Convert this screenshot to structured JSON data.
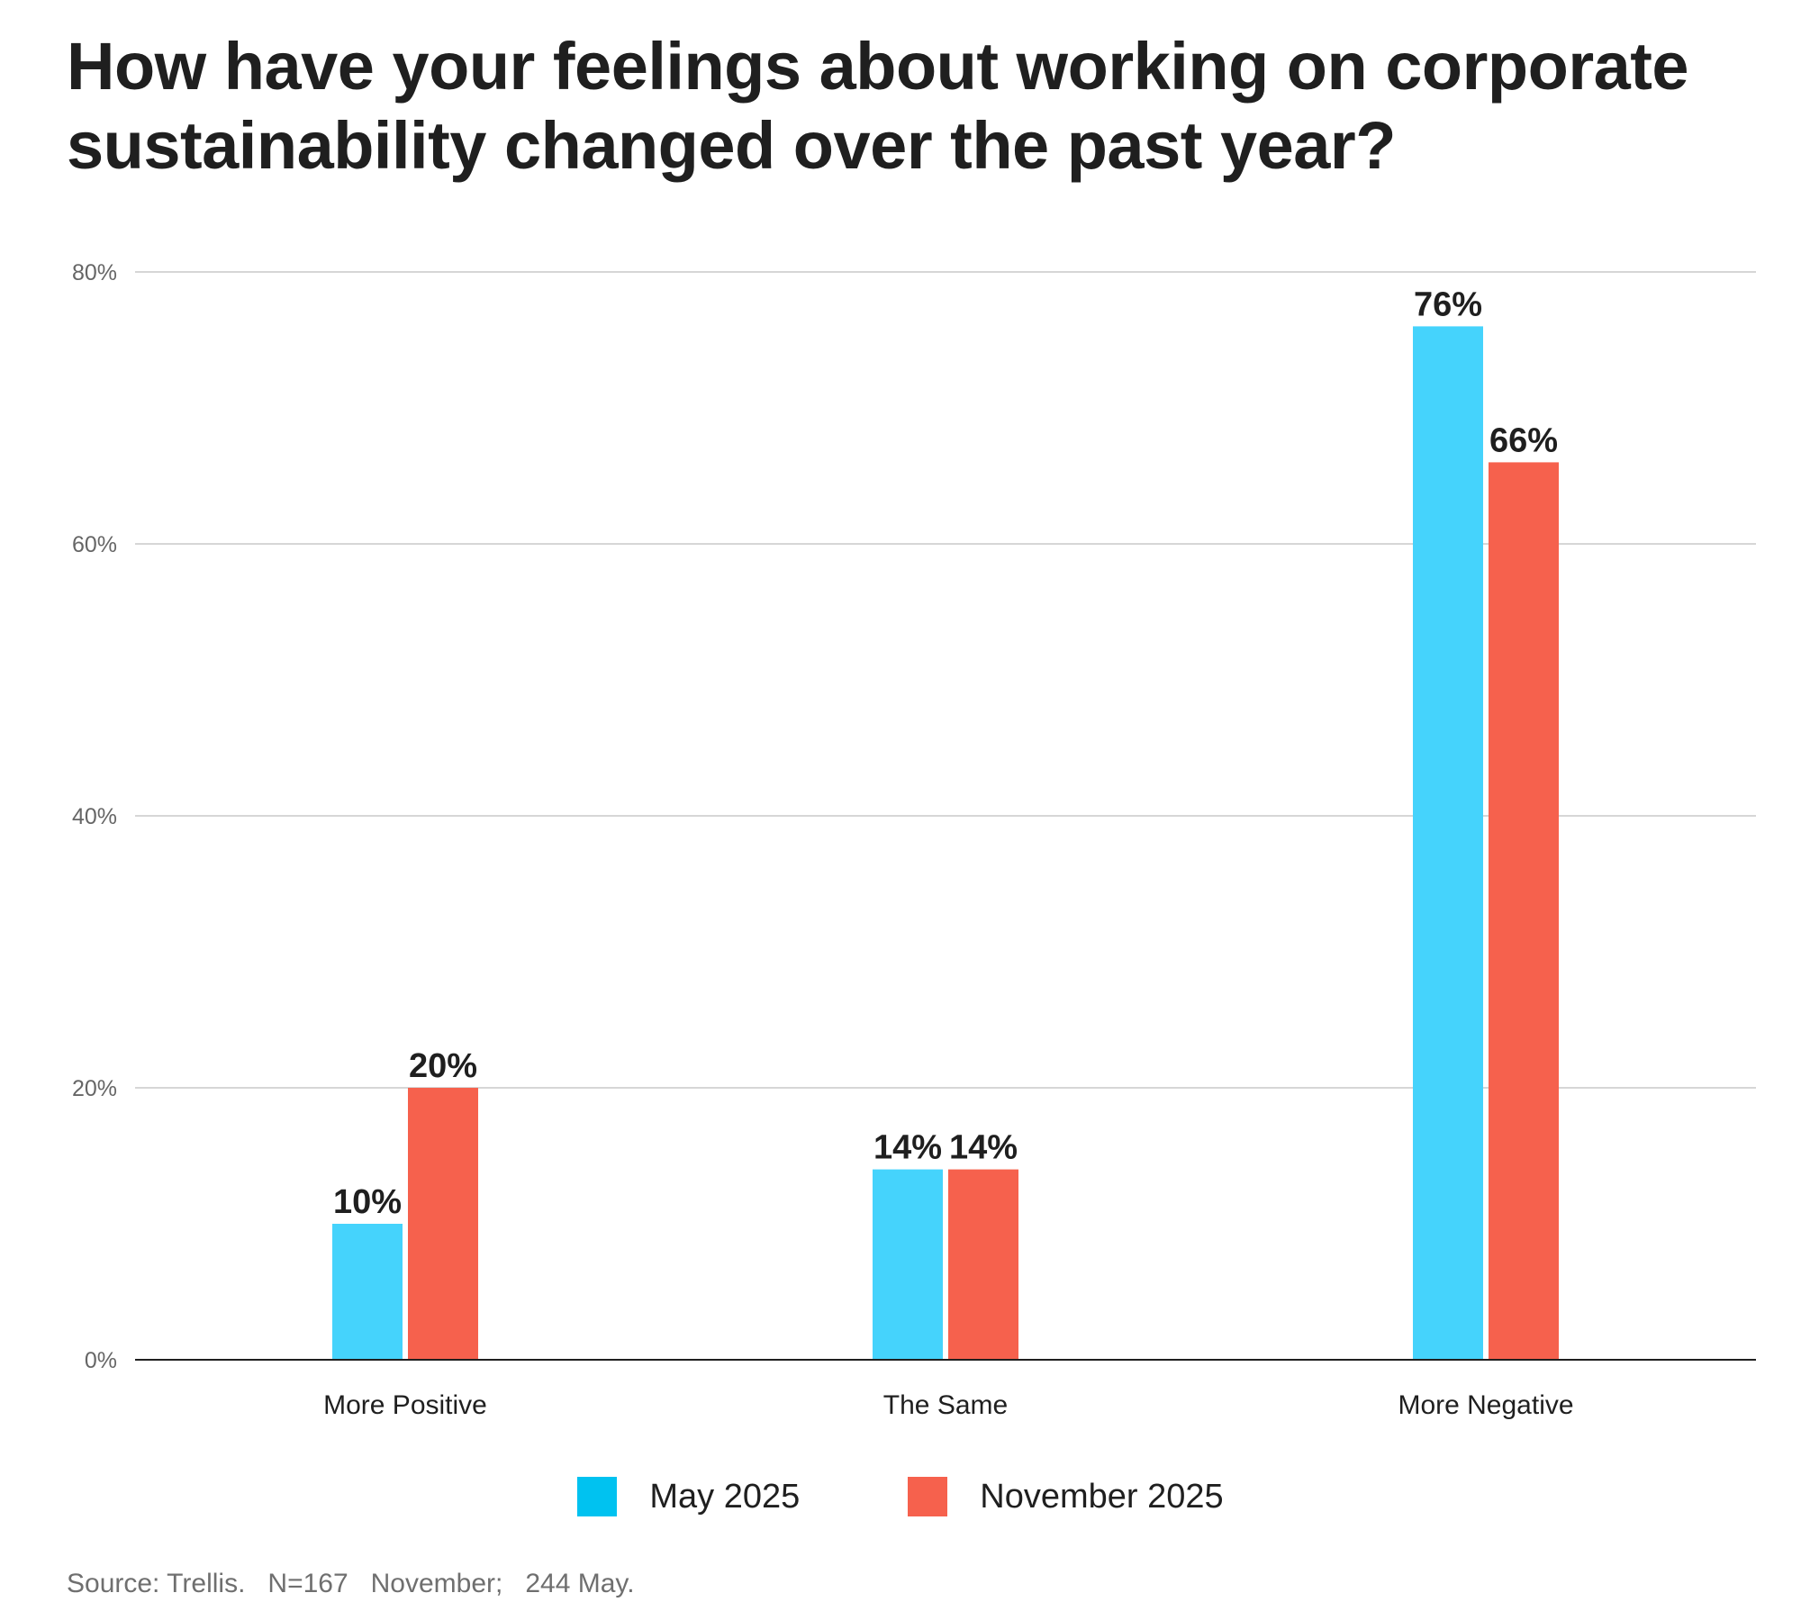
{
  "chart_data": {
    "type": "bar",
    "title": "How have your feelings about working on corporate sustainability changed over the past year?",
    "categories": [
      "More Positive",
      "The Same",
      "More Negative"
    ],
    "series": [
      {
        "name": "May 2025",
        "color": "#45D3FC",
        "legend_color": "#00C2F0",
        "values": [
          10,
          14,
          76
        ],
        "labels": [
          "10%",
          "14%",
          "76%"
        ]
      },
      {
        "name": "November 2025",
        "color": "#F6614D",
        "legend_color": "#F6614D",
        "values": [
          20,
          14,
          66
        ],
        "labels": [
          "20%",
          "14%",
          "66%"
        ]
      }
    ],
    "ylim": [
      0,
      80
    ],
    "yticks": [
      0,
      20,
      40,
      60,
      80
    ],
    "ytick_labels": [
      "0%",
      "20%",
      "40%",
      "60%",
      "80%"
    ],
    "xlabel": "",
    "ylabel": "",
    "grid": true,
    "legend_position": "bottom-center"
  },
  "source": "Source: Trellis.   N=167   November;   244 May."
}
